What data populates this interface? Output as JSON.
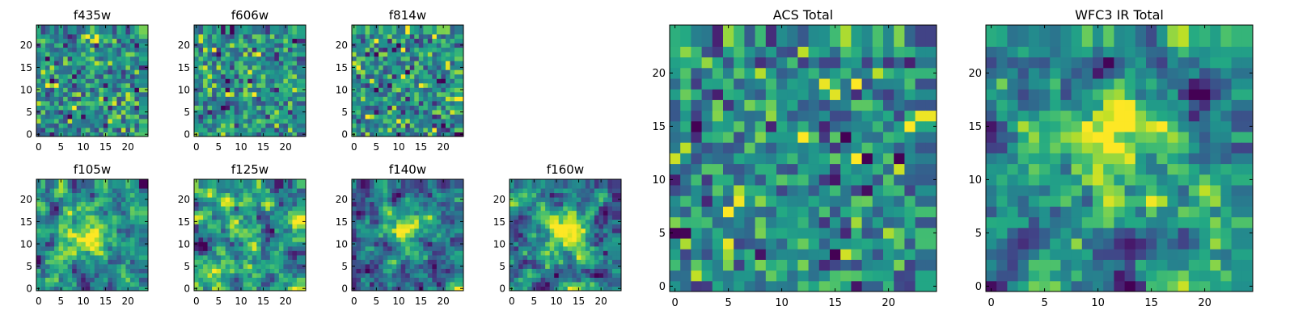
{
  "colors": {
    "colormap": "viridis",
    "axes_frame": "#000000",
    "background": "#ffffff"
  },
  "chart_data": [
    {
      "type": "heatmap",
      "title": "f435w",
      "xlim": [
        0,
        24
      ],
      "ylim": [
        0,
        24
      ],
      "grid_size": 24,
      "xticks": [
        "0",
        "5",
        "10",
        "15",
        "20"
      ],
      "yticks": [
        "0",
        "5",
        "10",
        "15",
        "20"
      ],
      "structure": "noise",
      "seed": 11,
      "colorscale": "viridis"
    },
    {
      "type": "heatmap",
      "title": "f606w",
      "xlim": [
        0,
        24
      ],
      "ylim": [
        0,
        24
      ],
      "grid_size": 24,
      "xticks": [
        "0",
        "5",
        "10",
        "15",
        "20"
      ],
      "yticks": [
        "0",
        "5",
        "10",
        "15",
        "20"
      ],
      "structure": "noise",
      "seed": 23,
      "colorscale": "viridis"
    },
    {
      "type": "heatmap",
      "title": "f814w",
      "xlim": [
        0,
        24
      ],
      "ylim": [
        0,
        24
      ],
      "grid_size": 24,
      "xticks": [
        "0",
        "5",
        "10",
        "15",
        "20"
      ],
      "yticks": [
        "0",
        "5",
        "10",
        "15",
        "20"
      ],
      "structure": "noise",
      "seed": 37,
      "colorscale": "viridis"
    },
    {
      "type": "heatmap",
      "title": "f105w",
      "xlim": [
        0,
        24
      ],
      "ylim": [
        0,
        24
      ],
      "grid_size": 24,
      "xticks": [
        "0",
        "5",
        "10",
        "15",
        "20"
      ],
      "yticks": [
        "0",
        "5",
        "10",
        "15",
        "20"
      ],
      "structure": "blob",
      "blob_center": [
        11,
        12
      ],
      "seed": 41,
      "colorscale": "viridis"
    },
    {
      "type": "heatmap",
      "title": "f125w",
      "xlim": [
        0,
        24
      ],
      "ylim": [
        0,
        24
      ],
      "grid_size": 24,
      "xticks": [
        "0",
        "5",
        "10",
        "15",
        "20"
      ],
      "yticks": [
        "0",
        "5",
        "10",
        "15",
        "20"
      ],
      "structure": "smooth",
      "seed": 53,
      "colorscale": "viridis"
    },
    {
      "type": "heatmap",
      "title": "f140w",
      "xlim": [
        0,
        24
      ],
      "ylim": [
        0,
        24
      ],
      "grid_size": 24,
      "xticks": [
        "0",
        "5",
        "10",
        "15",
        "20"
      ],
      "yticks": [
        "0",
        "5",
        "10",
        "15",
        "20"
      ],
      "structure": "blob",
      "blob_center": [
        12,
        13
      ],
      "seed": 67,
      "colorscale": "viridis"
    },
    {
      "type": "heatmap",
      "title": "f160w",
      "xlim": [
        0,
        24
      ],
      "ylim": [
        0,
        24
      ],
      "grid_size": 24,
      "xticks": [
        "0",
        "5",
        "10",
        "15",
        "20"
      ],
      "yticks": [
        "0",
        "5",
        "10",
        "15",
        "20"
      ],
      "structure": "blob",
      "blob_center": [
        12,
        12
      ],
      "seed": 79,
      "colorscale": "viridis"
    },
    {
      "type": "heatmap",
      "title": "ACS Total",
      "xlim": [
        0,
        24
      ],
      "ylim": [
        0,
        24
      ],
      "grid_size": 24,
      "xticks": [
        "0",
        "5",
        "10",
        "15",
        "20"
      ],
      "yticks": [
        "0",
        "5",
        "10",
        "15",
        "20"
      ],
      "structure": "noise-bright",
      "seed": 97,
      "colorscale": "viridis"
    },
    {
      "type": "heatmap",
      "title": "WFC3 IR Total",
      "xlim": [
        0,
        24
      ],
      "ylim": [
        0,
        24
      ],
      "grid_size": 24,
      "xticks": [
        "0",
        "5",
        "10",
        "15",
        "20"
      ],
      "yticks": [
        "0",
        "5",
        "10",
        "15",
        "20"
      ],
      "structure": "blob",
      "blob_center": [
        11,
        13
      ],
      "seed": 101,
      "colorscale": "viridis"
    }
  ]
}
